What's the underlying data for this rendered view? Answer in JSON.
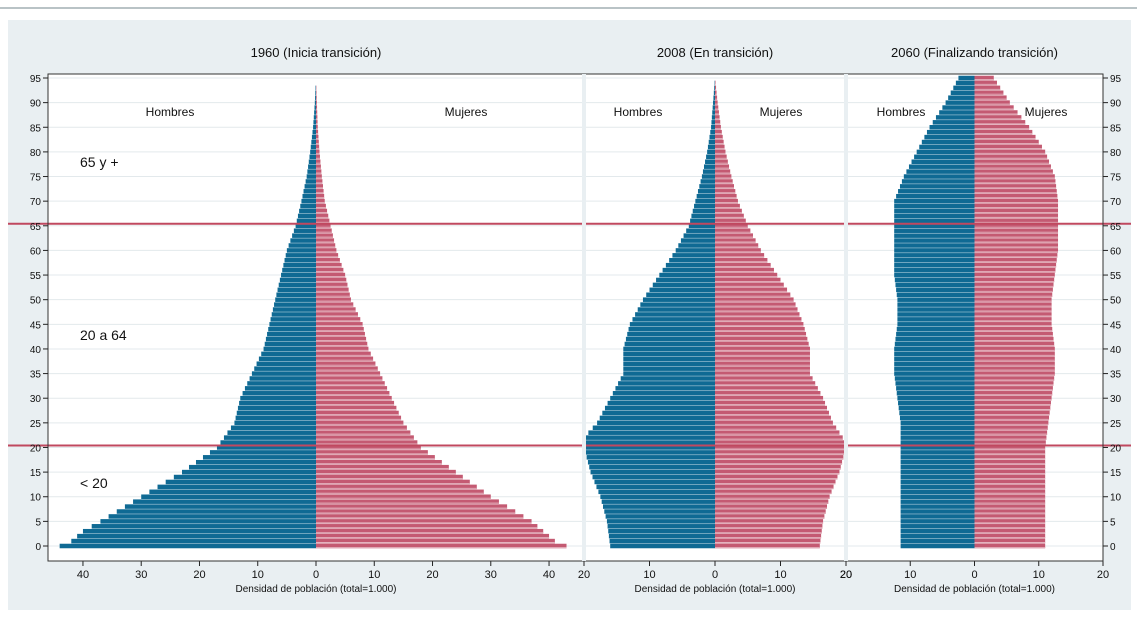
{
  "chart_data": [
    {
      "type": "bar",
      "orientation": "horizontal",
      "title": "1960 (Inicia transición)",
      "xlabel": "Densidad de población (total=1.000)",
      "ylabel": "",
      "xlim": [
        -46,
        46
      ],
      "xticks": [
        -40,
        -30,
        -20,
        -10,
        0,
        10,
        20,
        30,
        40
      ],
      "xtick_labels": [
        "40",
        "30",
        "20",
        "10",
        "0",
        "10",
        "20",
        "30",
        "40"
      ],
      "ylim": [
        0,
        95
      ],
      "yticks": [
        0,
        5,
        10,
        15,
        20,
        25,
        30,
        35,
        40,
        45,
        50,
        55,
        60,
        65,
        70,
        75,
        80,
        85,
        90,
        95
      ],
      "ytick_labels": [
        "0",
        "5",
        "10",
        "15",
        "20",
        "25",
        "30",
        "35",
        "40",
        "45",
        "50",
        "55",
        "60",
        "65",
        "70",
        "75",
        "80",
        "85",
        "90",
        "95"
      ],
      "left_label": "Hombres",
      "right_label": "Mujeres",
      "age_groups": [
        "65 y +",
        "20 a 64",
        "< 20"
      ],
      "thresholds": [
        20,
        65
      ],
      "series": [
        {
          "name": "Hombres",
          "control_ages": [
            0,
            1,
            3,
            5,
            10,
            15,
            20,
            25,
            30,
            35,
            40,
            45,
            50,
            55,
            60,
            65,
            70,
            75,
            80,
            85,
            90,
            95
          ],
          "values": [
            44,
            42,
            40,
            37,
            30,
            23,
            17,
            14,
            13,
            11,
            9,
            8,
            7,
            6,
            5,
            3.5,
            2.5,
            1.6,
            1.0,
            0.5,
            0.2,
            0
          ]
        },
        {
          "name": "Mujeres",
          "control_ages": [
            0,
            1,
            3,
            5,
            10,
            15,
            20,
            25,
            30,
            35,
            40,
            45,
            50,
            55,
            60,
            65,
            70,
            75,
            80,
            85,
            90,
            95
          ],
          "values": [
            43,
            41,
            39,
            37,
            30,
            24,
            18,
            15,
            13,
            11,
            9,
            8,
            6,
            5,
            3.5,
            2.5,
            1.5,
            1.0,
            0.6,
            0.3,
            0.15,
            0
          ]
        }
      ]
    },
    {
      "type": "bar",
      "orientation": "horizontal",
      "title": "2008 (En transición)",
      "xlabel": "Densidad de población (total=1.000)",
      "ylabel": "",
      "xlim": [
        -20,
        20
      ],
      "xticks": [
        -20,
        -10,
        0,
        10,
        20
      ],
      "xtick_labels": [
        "20",
        "10",
        "0",
        "10",
        "20"
      ],
      "ylim": [
        0,
        95
      ],
      "left_label": "Hombres",
      "right_label": "Mujeres",
      "series": [
        {
          "name": "Hombres",
          "control_ages": [
            0,
            5,
            10,
            15,
            20,
            22,
            25,
            30,
            35,
            40,
            45,
            50,
            55,
            60,
            65,
            70,
            75,
            80,
            85,
            90,
            95
          ],
          "values": [
            16,
            16.5,
            17.5,
            19,
            20,
            20,
            18,
            16,
            14,
            14,
            13,
            11,
            8.5,
            6,
            4,
            3,
            2,
            1.2,
            0.6,
            0.3,
            0
          ]
        },
        {
          "name": "Mujeres",
          "control_ages": [
            0,
            5,
            10,
            15,
            20,
            22,
            25,
            30,
            35,
            40,
            45,
            50,
            55,
            60,
            65,
            70,
            75,
            80,
            85,
            90,
            95
          ],
          "values": [
            16,
            16.5,
            17.5,
            19,
            20,
            19.5,
            18,
            16.5,
            14.5,
            14.5,
            13.5,
            12,
            9.5,
            7,
            5,
            3.5,
            2.5,
            1.6,
            0.9,
            0.4,
            0
          ]
        }
      ]
    },
    {
      "type": "bar",
      "orientation": "horizontal",
      "title": "2060 (Finalizando transición)",
      "xlabel": "Densidad de población (total=1.000)",
      "ylabel": "",
      "xlim": [
        -20,
        20
      ],
      "xticks": [
        -20,
        -10,
        0,
        10,
        20
      ],
      "xtick_labels": [
        "20",
        "10",
        "0",
        "10",
        "20"
      ],
      "ylim": [
        0,
        95
      ],
      "left_label": "Hombres",
      "right_label": "Mujeres",
      "series": [
        {
          "name": "Hombres",
          "control_ages": [
            0,
            5,
            10,
            15,
            20,
            25,
            30,
            35,
            40,
            45,
            50,
            55,
            60,
            65,
            70,
            75,
            80,
            85,
            90,
            95
          ],
          "values": [
            11.5,
            11.5,
            11.5,
            11.5,
            11.5,
            11.5,
            12,
            12.5,
            12.5,
            12,
            12,
            12.5,
            12.5,
            12.5,
            12.5,
            11,
            9,
            7,
            4.5,
            2.5
          ]
        },
        {
          "name": "Mujeres",
          "control_ages": [
            0,
            5,
            10,
            15,
            20,
            25,
            30,
            35,
            40,
            45,
            50,
            55,
            60,
            65,
            70,
            75,
            80,
            85,
            90,
            95
          ],
          "values": [
            11,
            11,
            11,
            11,
            11,
            11.5,
            12,
            12.5,
            12.5,
            12,
            12,
            12.5,
            13,
            13,
            13,
            12.5,
            11,
            8.5,
            5.5,
            3
          ]
        }
      ]
    }
  ]
}
